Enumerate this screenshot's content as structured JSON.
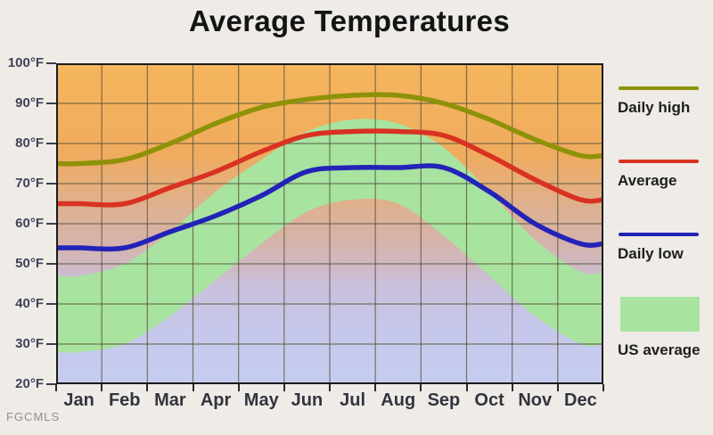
{
  "title": "Average Temperatures",
  "watermark": "FGCMLS",
  "legend": [
    {
      "label": "Daily high",
      "type": "line",
      "color": "#8e9208"
    },
    {
      "label": "Average",
      "type": "line",
      "color": "#d93222"
    },
    {
      "label": "Daily low",
      "type": "line",
      "color": "#2323b8"
    },
    {
      "label": "US average",
      "type": "area",
      "color": "#a8e3a0"
    }
  ],
  "chart_data": {
    "type": "line",
    "title": "Average Temperatures",
    "categories": [
      "Jan",
      "Feb",
      "Mar",
      "Apr",
      "May",
      "Jun",
      "Jul",
      "Aug",
      "Sep",
      "Oct",
      "Nov",
      "Dec"
    ],
    "series": [
      {
        "name": "Daily high",
        "color": "#8e9208",
        "values": [
          75,
          76,
          80,
          85,
          89,
          91,
          92,
          92,
          90,
          86,
          81,
          77
        ]
      },
      {
        "name": "Average",
        "color": "#d93222",
        "values": [
          65,
          65,
          69,
          73,
          78,
          82,
          83,
          83,
          82,
          77,
          71,
          66
        ]
      },
      {
        "name": "Daily low",
        "color": "#2323b8",
        "values": [
          54,
          54,
          58,
          62,
          67,
          73,
          74,
          74,
          74,
          68,
          60,
          55
        ]
      }
    ],
    "bands": [
      {
        "name": "US average",
        "color": "#a8e3a0",
        "upper": [
          47,
          50,
          58,
          68,
          76,
          83,
          86,
          85,
          79,
          68,
          56,
          48
        ],
        "lower": [
          28,
          30,
          37,
          46,
          55,
          63,
          66,
          65,
          57,
          47,
          37,
          30
        ]
      }
    ],
    "y_ticks": [
      "100°F",
      "90°F",
      "80°F",
      "70°F",
      "60°F",
      "50°F",
      "40°F",
      "30°F",
      "20°F"
    ],
    "ylim": [
      20,
      100
    ],
    "xlabel": "",
    "ylabel": "",
    "grid": true,
    "legend_position": "right"
  }
}
